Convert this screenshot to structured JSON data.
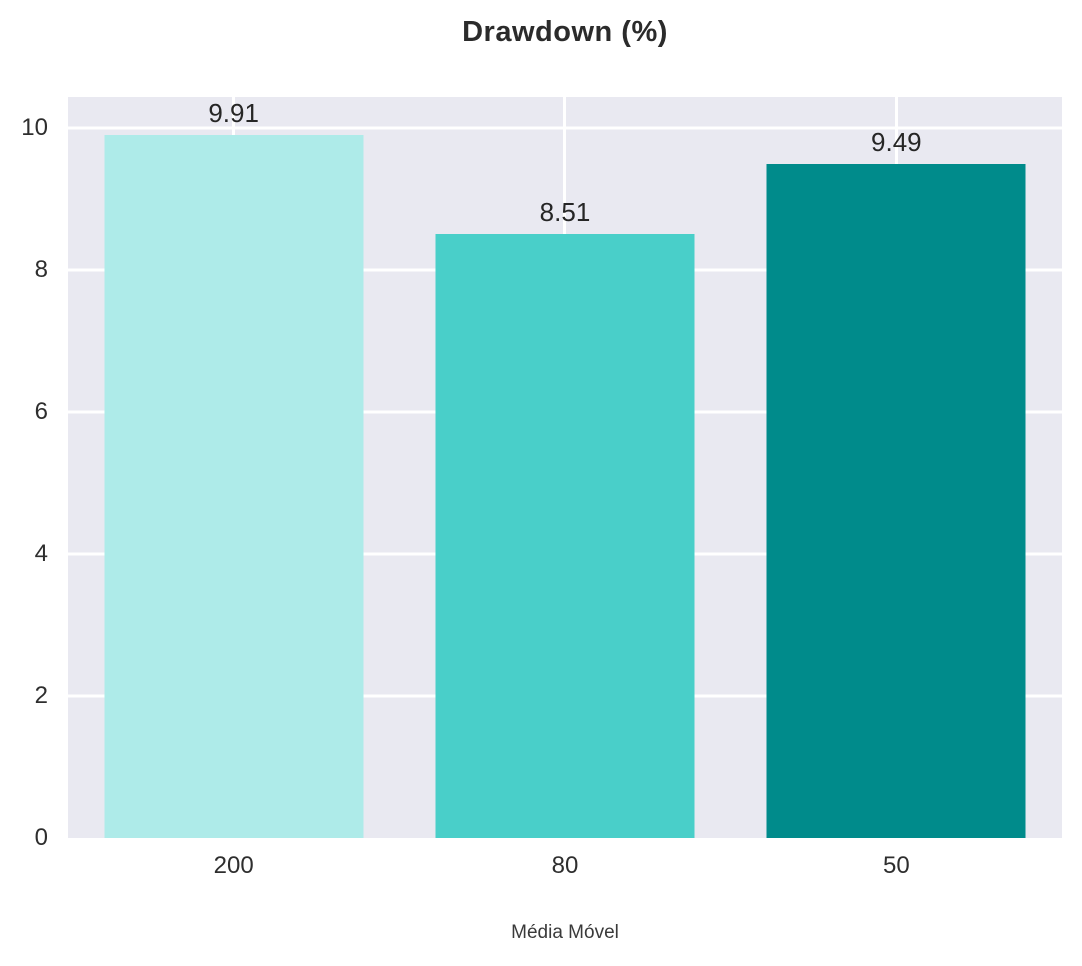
{
  "chart_data": {
    "type": "bar",
    "title": "Drawdown (%)",
    "categories": [
      "200",
      "80",
      "50"
    ],
    "values": [
      9.91,
      8.51,
      9.49
    ],
    "value_labels": [
      "9.91",
      "8.51",
      "9.49"
    ],
    "xlabel": "Média Móvel",
    "ylabel": "",
    "ylim": [
      0,
      10.44
    ],
    "yticks": [
      0,
      2,
      4,
      6,
      8,
      10
    ],
    "bar_colors": [
      "#aeebe9",
      "#49cfc9",
      "#008b8b"
    ],
    "grid": true,
    "legend_position": "none",
    "plot_background": "#e9e9f1",
    "grid_color": "#ffffff",
    "text_color": "#262626"
  }
}
